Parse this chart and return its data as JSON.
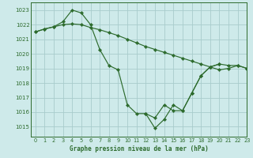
{
  "title": "Graphe pression niveau de la mer (hPa)",
  "bg_color": "#ceeaea",
  "grid_color": "#a8cccc",
  "line_color": "#2d6b2d",
  "xlim": [
    -0.5,
    23
  ],
  "ylim": [
    1014.3,
    1023.5
  ],
  "yticks": [
    1015,
    1016,
    1017,
    1018,
    1019,
    1020,
    1021,
    1022,
    1023
  ],
  "xticks": [
    0,
    1,
    2,
    3,
    4,
    5,
    6,
    7,
    8,
    9,
    10,
    11,
    12,
    13,
    14,
    15,
    16,
    17,
    18,
    19,
    20,
    21,
    22,
    23
  ],
  "series1_x": [
    0,
    1,
    2,
    3,
    4,
    5,
    6,
    7,
    8,
    9,
    10,
    11,
    12,
    13,
    14,
    15,
    16,
    17,
    18,
    19,
    20,
    21,
    22,
    23
  ],
  "series1_y": [
    1021.5,
    1021.7,
    1021.85,
    1022.0,
    1022.05,
    1022.0,
    1021.8,
    1021.65,
    1021.45,
    1021.25,
    1021.0,
    1020.75,
    1020.5,
    1020.3,
    1020.1,
    1019.9,
    1019.7,
    1019.5,
    1019.3,
    1019.1,
    1018.9,
    1019.0,
    1019.2,
    1019.0
  ],
  "series2_x": [
    0,
    1,
    2,
    3,
    4,
    5,
    6,
    7,
    8,
    9,
    10,
    11,
    12,
    13,
    14,
    15,
    16,
    17,
    18,
    19,
    20
  ],
  "series2_y": [
    1021.5,
    1021.7,
    1021.85,
    1022.2,
    1023.0,
    1022.8,
    1022.0,
    1020.3,
    1019.2,
    1018.9,
    1016.5,
    1015.9,
    1015.9,
    1015.6,
    1016.5,
    1016.1,
    1016.1,
    1017.3,
    1018.5,
    1019.1,
    1019.3
  ],
  "series3_x": [
    12,
    13,
    14,
    15,
    16,
    17,
    18,
    19,
    20,
    21,
    22,
    23
  ],
  "series3_y": [
    1015.9,
    1014.9,
    1015.5,
    1016.5,
    1016.1,
    1017.3,
    1018.5,
    1019.1,
    1019.3,
    1019.2,
    1019.2,
    1019.0
  ]
}
